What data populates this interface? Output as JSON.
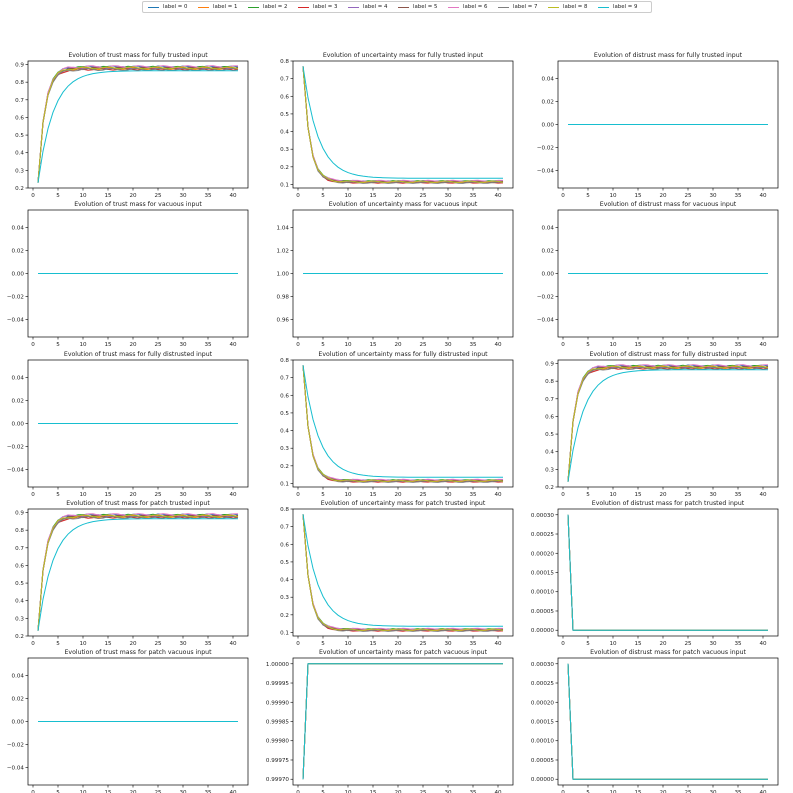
{
  "legend": {
    "position": "top-center",
    "entries": [
      "label = 0",
      "label = 1",
      "label = 2",
      "label = 3",
      "label = 4",
      "label = 5",
      "label = 6",
      "label = 7",
      "label = 8",
      "label = 9"
    ],
    "colors": [
      "#1f77b4",
      "#ff7f0e",
      "#2ca02c",
      "#d62728",
      "#9467bd",
      "#8c564b",
      "#e377c2",
      "#7f7f7f",
      "#bcbd22",
      "#17becf"
    ]
  },
  "chart_data": [
    {
      "type": "line",
      "title": "Evolution of trust mass for fully trusted input",
      "xlim": [
        -1,
        43
      ],
      "ylim": [
        0.2,
        0.92
      ],
      "x_ticks": [
        0,
        5,
        10,
        15,
        20,
        25,
        30,
        35,
        40
      ],
      "y_ticks": [
        "0.2",
        "0.3",
        "0.4",
        "0.5",
        "0.6",
        "0.7",
        "0.8",
        "0.9"
      ],
      "curve": {
        "kind": "rise",
        "start": 0.23,
        "end": 0.88,
        "end_outlier": 0.865,
        "rate": 0.75
      }
    },
    {
      "type": "line",
      "title": "Evolution of uncertainty mass for fully trusted input",
      "xlim": [
        -1,
        43
      ],
      "ylim": [
        0.08,
        0.8
      ],
      "x_ticks": [
        0,
        5,
        10,
        15,
        20,
        25,
        30,
        35,
        40
      ],
      "y_ticks": [
        "0.1",
        "0.2",
        "0.3",
        "0.4",
        "0.5",
        "0.6",
        "0.7",
        "0.8"
      ],
      "curve": {
        "kind": "fall",
        "start": 0.77,
        "end": 0.115,
        "end_outlier": 0.135,
        "rate": 0.75
      }
    },
    {
      "type": "line",
      "title": "Evolution of distrust mass for fully trusted input",
      "xlim": [
        -1,
        43
      ],
      "ylim": [
        -0.055,
        0.055
      ],
      "x_ticks": [
        0,
        5,
        10,
        15,
        20,
        25,
        30,
        35,
        40
      ],
      "y_ticks": [
        "−0.04",
        "−0.02",
        "0.00",
        "0.02",
        "0.04"
      ],
      "curve": {
        "kind": "flat",
        "value": 0.0
      }
    },
    {
      "type": "line",
      "title": "Evolution of trust mass for vacuous input",
      "xlim": [
        -1,
        43
      ],
      "ylim": [
        -0.055,
        0.055
      ],
      "x_ticks": [
        0,
        5,
        10,
        15,
        20,
        25,
        30,
        35,
        40
      ],
      "y_ticks": [
        "−0.04",
        "−0.02",
        "0.00",
        "0.02",
        "0.04"
      ],
      "curve": {
        "kind": "flat",
        "value": 0.0
      }
    },
    {
      "type": "line",
      "title": "Evolution of uncertainty mass for vacuous input",
      "xlim": [
        -1,
        43
      ],
      "ylim": [
        0.945,
        1.055
      ],
      "x_ticks": [
        0,
        5,
        10,
        15,
        20,
        25,
        30,
        35,
        40
      ],
      "y_ticks": [
        "0.96",
        "0.98",
        "1.00",
        "1.02",
        "1.04"
      ],
      "curve": {
        "kind": "flat",
        "value": 1.0
      }
    },
    {
      "type": "line",
      "title": "Evolution of distrust mass for vacuous input",
      "xlim": [
        -1,
        43
      ],
      "ylim": [
        -0.055,
        0.055
      ],
      "x_ticks": [
        0,
        5,
        10,
        15,
        20,
        25,
        30,
        35,
        40
      ],
      "y_ticks": [
        "−0.04",
        "−0.02",
        "0.00",
        "0.02",
        "0.04"
      ],
      "curve": {
        "kind": "flat",
        "value": 0.0
      }
    },
    {
      "type": "line",
      "title": "Evolution of trust mass for fully distrusted input",
      "xlim": [
        -1,
        43
      ],
      "ylim": [
        -0.055,
        0.055
      ],
      "x_ticks": [
        0,
        5,
        10,
        15,
        20,
        25,
        30,
        35,
        40
      ],
      "y_ticks": [
        "−0.04",
        "−0.02",
        "0.00",
        "0.02",
        "0.04"
      ],
      "curve": {
        "kind": "flat",
        "value": 0.0
      }
    },
    {
      "type": "line",
      "title": "Evolution of uncertainty mass for fully distrusted input",
      "xlim": [
        -1,
        43
      ],
      "ylim": [
        0.08,
        0.8
      ],
      "x_ticks": [
        0,
        5,
        10,
        15,
        20,
        25,
        30,
        35,
        40
      ],
      "y_ticks": [
        "0.1",
        "0.2",
        "0.3",
        "0.4",
        "0.5",
        "0.6",
        "0.7",
        "0.8"
      ],
      "curve": {
        "kind": "fall",
        "start": 0.77,
        "end": 0.115,
        "end_outlier": 0.135,
        "rate": 0.75
      }
    },
    {
      "type": "line",
      "title": "Evolution of distrust mass for fully distrusted input",
      "xlim": [
        -1,
        43
      ],
      "ylim": [
        0.2,
        0.92
      ],
      "x_ticks": [
        0,
        5,
        10,
        15,
        20,
        25,
        30,
        35,
        40
      ],
      "y_ticks": [
        "0.2",
        "0.3",
        "0.4",
        "0.5",
        "0.6",
        "0.7",
        "0.8",
        "0.9"
      ],
      "curve": {
        "kind": "rise",
        "start": 0.23,
        "end": 0.88,
        "end_outlier": 0.865,
        "rate": 0.75
      }
    },
    {
      "type": "line",
      "title": "Evolution of trust mass for patch trusted input",
      "xlim": [
        -1,
        43
      ],
      "ylim": [
        0.2,
        0.92
      ],
      "x_ticks": [
        0,
        5,
        10,
        15,
        20,
        25,
        30,
        35,
        40
      ],
      "y_ticks": [
        "0.2",
        "0.3",
        "0.4",
        "0.5",
        "0.6",
        "0.7",
        "0.8",
        "0.9"
      ],
      "curve": {
        "kind": "rise",
        "start": 0.23,
        "end": 0.88,
        "end_outlier": 0.865,
        "rate": 0.75
      }
    },
    {
      "type": "line",
      "title": "Evolution of uncertainty mass for patch trusted input",
      "xlim": [
        -1,
        43
      ],
      "ylim": [
        0.08,
        0.8
      ],
      "x_ticks": [
        0,
        5,
        10,
        15,
        20,
        25,
        30,
        35,
        40
      ],
      "y_ticks": [
        "0.1",
        "0.2",
        "0.3",
        "0.4",
        "0.5",
        "0.6",
        "0.7",
        "0.8"
      ],
      "curve": {
        "kind": "fall",
        "start": 0.77,
        "end": 0.115,
        "end_outlier": 0.135,
        "rate": 0.75
      }
    },
    {
      "type": "line",
      "title": "Evolution of distrust mass for patch trusted input",
      "xlim": [
        -1,
        43
      ],
      "ylim": [
        -1.5e-05,
        0.000315
      ],
      "x_ticks": [
        0,
        5,
        10,
        15,
        20,
        25,
        30,
        35,
        40
      ],
      "y_ticks": [
        "0.00000",
        "0.00005",
        "0.00010",
        "0.00015",
        "0.00020",
        "0.00025",
        "0.00030"
      ],
      "curve": {
        "kind": "drop",
        "start": 0.0003,
        "end": 0.0
      }
    },
    {
      "type": "line",
      "title": "Evolution of trust mass for patch vacuous input",
      "xlim": [
        -1,
        43
      ],
      "ylim": [
        -0.055,
        0.055
      ],
      "x_ticks": [
        0,
        5,
        10,
        15,
        20,
        25,
        30,
        35,
        40
      ],
      "y_ticks": [
        "−0.04",
        "−0.02",
        "0.00",
        "0.02",
        "0.04"
      ],
      "curve": {
        "kind": "flat",
        "value": 0.0
      }
    },
    {
      "type": "line",
      "title": "Evolution of uncertainty mass for patch vacuous input",
      "xlim": [
        -1,
        43
      ],
      "ylim": [
        0.999685,
        1.000015
      ],
      "x_ticks": [
        0,
        5,
        10,
        15,
        20,
        25,
        30,
        35,
        40
      ],
      "y_ticks": [
        "0.99970",
        "0.99975",
        "0.99980",
        "0.99985",
        "0.99990",
        "0.99995",
        "1.00000"
      ],
      "curve": {
        "kind": "jump",
        "start": 0.9997,
        "end": 1.0
      }
    },
    {
      "type": "line",
      "title": "Evolution of distrust mass for patch vacuous input",
      "xlim": [
        -1,
        43
      ],
      "ylim": [
        -1.5e-05,
        0.000315
      ],
      "x_ticks": [
        0,
        5,
        10,
        15,
        20,
        25,
        30,
        35,
        40
      ],
      "y_ticks": [
        "0.00000",
        "0.00005",
        "0.00010",
        "0.00015",
        "0.00020",
        "0.00025",
        "0.00030"
      ],
      "curve": {
        "kind": "drop",
        "start": 0.0003,
        "end": 0.0
      }
    }
  ]
}
